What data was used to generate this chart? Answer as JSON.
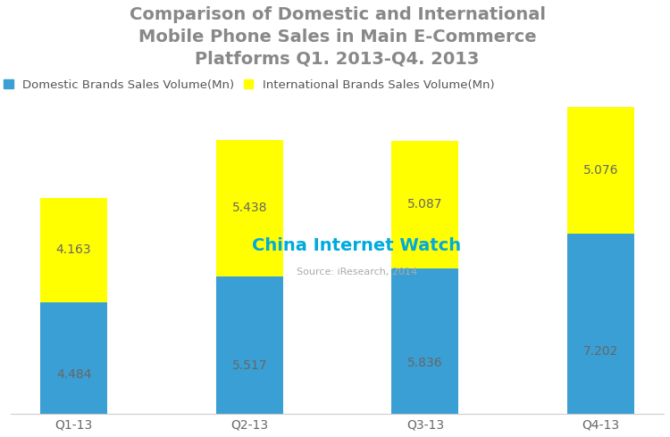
{
  "title": "Comparison of Domestic and International\nMobile Phone Sales in Main E-Commerce\nPlatforms Q1. 2013-Q4. 2013",
  "categories": [
    "Q1-13",
    "Q2-13",
    "Q3-13",
    "Q4-13"
  ],
  "domestic_values": [
    4.484,
    5.517,
    5.836,
    7.202
  ],
  "international_values": [
    4.163,
    5.438,
    5.087,
    5.076
  ],
  "domestic_color": "#3A9FD4",
  "international_color": "#FFFF00",
  "domestic_label": "Domestic Brands Sales Volume(Mn)",
  "international_label": "International Brands Sales Volume(Mn)",
  "title_color": "#888888",
  "title_fontsize": 14,
  "legend_fontsize": 9.5,
  "bar_label_fontsize": 10,
  "bar_label_color": "#666666",
  "tick_label_fontsize": 10,
  "tick_label_color": "#666666",
  "watermark_text": "China Internet Watch",
  "watermark_color": "#00AADD",
  "watermark_fontsize": 14,
  "source_text": "Source: iResearch, 2014",
  "source_color": "#AAAAAA",
  "source_fontsize": 8,
  "background_color": "#FFFFFF",
  "bar_width": 0.38,
  "ylim": [
    0,
    13.5
  ]
}
